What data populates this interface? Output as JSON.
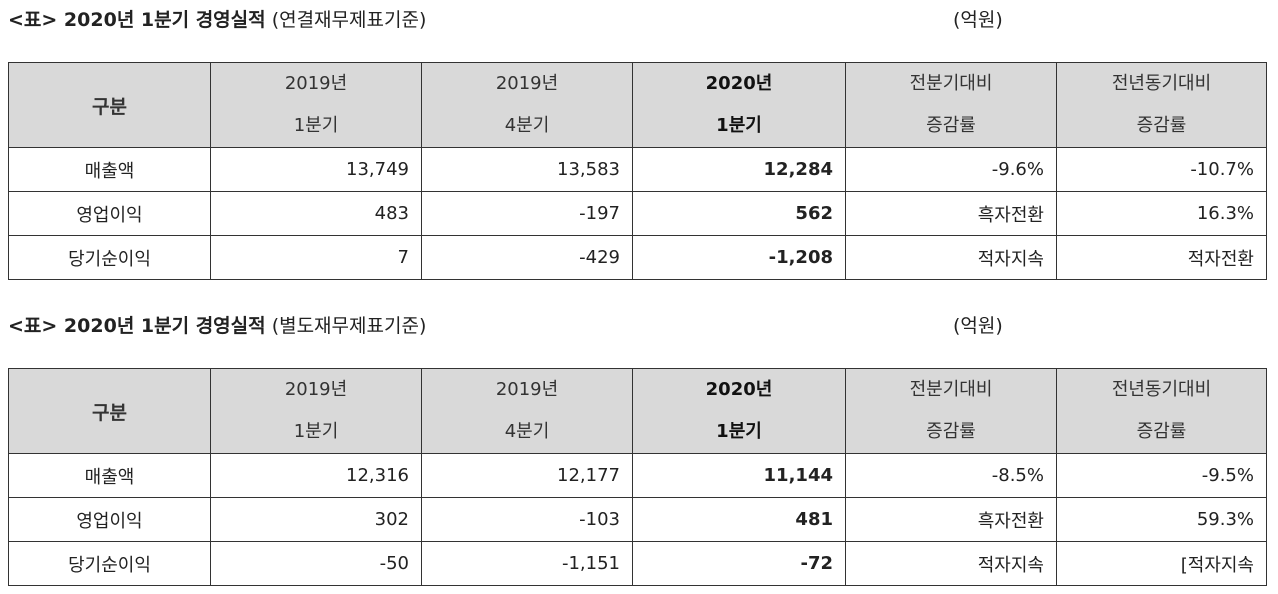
{
  "tables": [
    {
      "title_bold": "<표> 2020년 1분기 경영실적",
      "title_suffix": "(연결재무제표기준)",
      "unit": "(억원)",
      "header": {
        "category": "구분",
        "cols": [
          {
            "line1": "2019년",
            "line2": "1분기"
          },
          {
            "line1": "2019년",
            "line2": "4분기"
          },
          {
            "line1": "2020년",
            "line2": "1분기"
          },
          {
            "line1": "전분기대비",
            "line2": "증감률"
          },
          {
            "line1": "전년동기대비",
            "line2": "증감률"
          }
        ]
      },
      "rows": [
        {
          "label": "매출액",
          "values": [
            "13,749",
            "13,583",
            "12,284",
            "-9.6%",
            "-10.7%"
          ]
        },
        {
          "label": "영업이익",
          "values": [
            "483",
            "-197",
            "562",
            "흑자전환",
            "16.3%"
          ]
        },
        {
          "label": "당기순이익",
          "values": [
            "7",
            "-429",
            "-1,208",
            "적자지속",
            "적자전환"
          ]
        }
      ]
    },
    {
      "title_bold": "<표> 2020년 1분기 경영실적",
      "title_suffix": "(별도재무제표기준)",
      "unit": "(억원)",
      "header": {
        "category": "구분",
        "cols": [
          {
            "line1": "2019년",
            "line2": "1분기"
          },
          {
            "line1": "2019년",
            "line2": "4분기"
          },
          {
            "line1": "2020년",
            "line2": "1분기"
          },
          {
            "line1": "전분기대비",
            "line2": "증감률"
          },
          {
            "line1": "전년동기대비",
            "line2": "증감률"
          }
        ]
      },
      "rows": [
        {
          "label": "매출액",
          "values": [
            "12,316",
            "12,177",
            "11,144",
            "-8.5%",
            "-9.5%"
          ]
        },
        {
          "label": "영업이익",
          "values": [
            "302",
            "-103",
            "481",
            "흑자전환",
            "59.3%"
          ]
        },
        {
          "label": "당기순이익",
          "values": [
            "-50",
            "-1,151",
            "-72",
            "적자지속",
            "[적자지속"
          ]
        }
      ]
    }
  ]
}
